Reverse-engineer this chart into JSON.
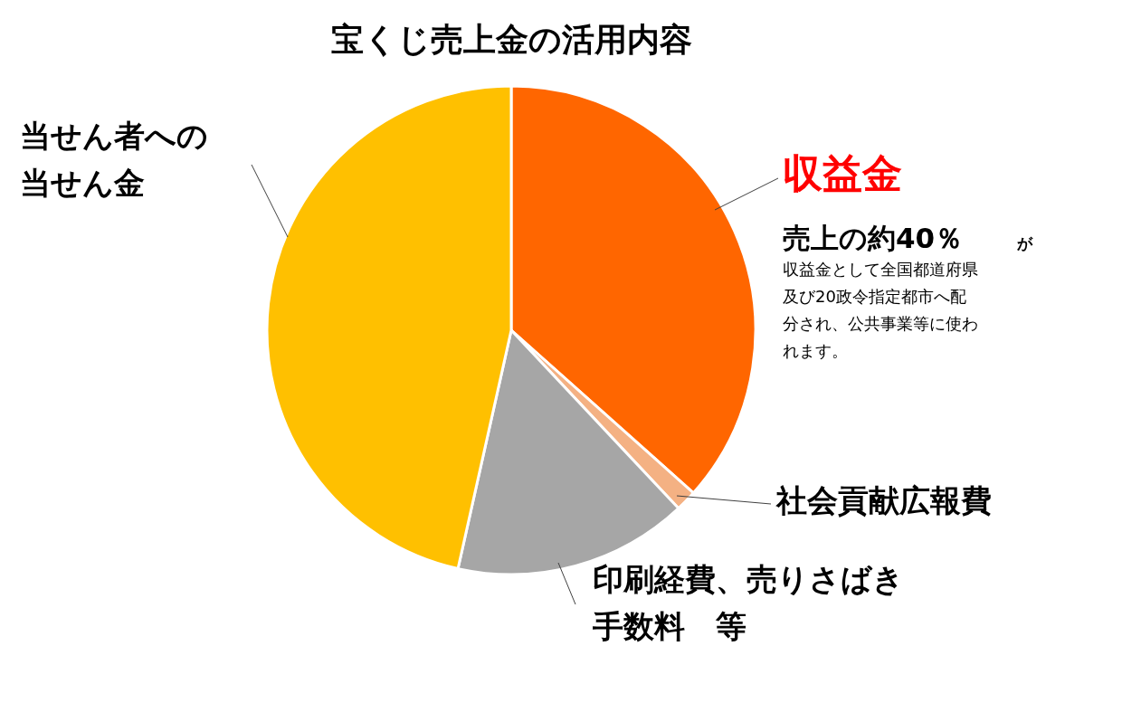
{
  "chart_data": {
    "type": "pie",
    "title": "宝くじ売上金の活用内容",
    "categories": [
      "収益金",
      "社会貢献広報費",
      "印刷経費、売りさばき手数料　等",
      "当せん者への当せん金"
    ],
    "values": [
      36.6,
      1.4,
      15.5,
      46.5
    ],
    "colors": [
      "#ff6600",
      "#f4b183",
      "#a6a6a6",
      "#ffc000"
    ],
    "annotations": [
      "売上の約40％",
      "が",
      "収益金として全国都道府県及び20政令指定都市へ配分され、公共事業等に使われます。"
    ]
  }
}
